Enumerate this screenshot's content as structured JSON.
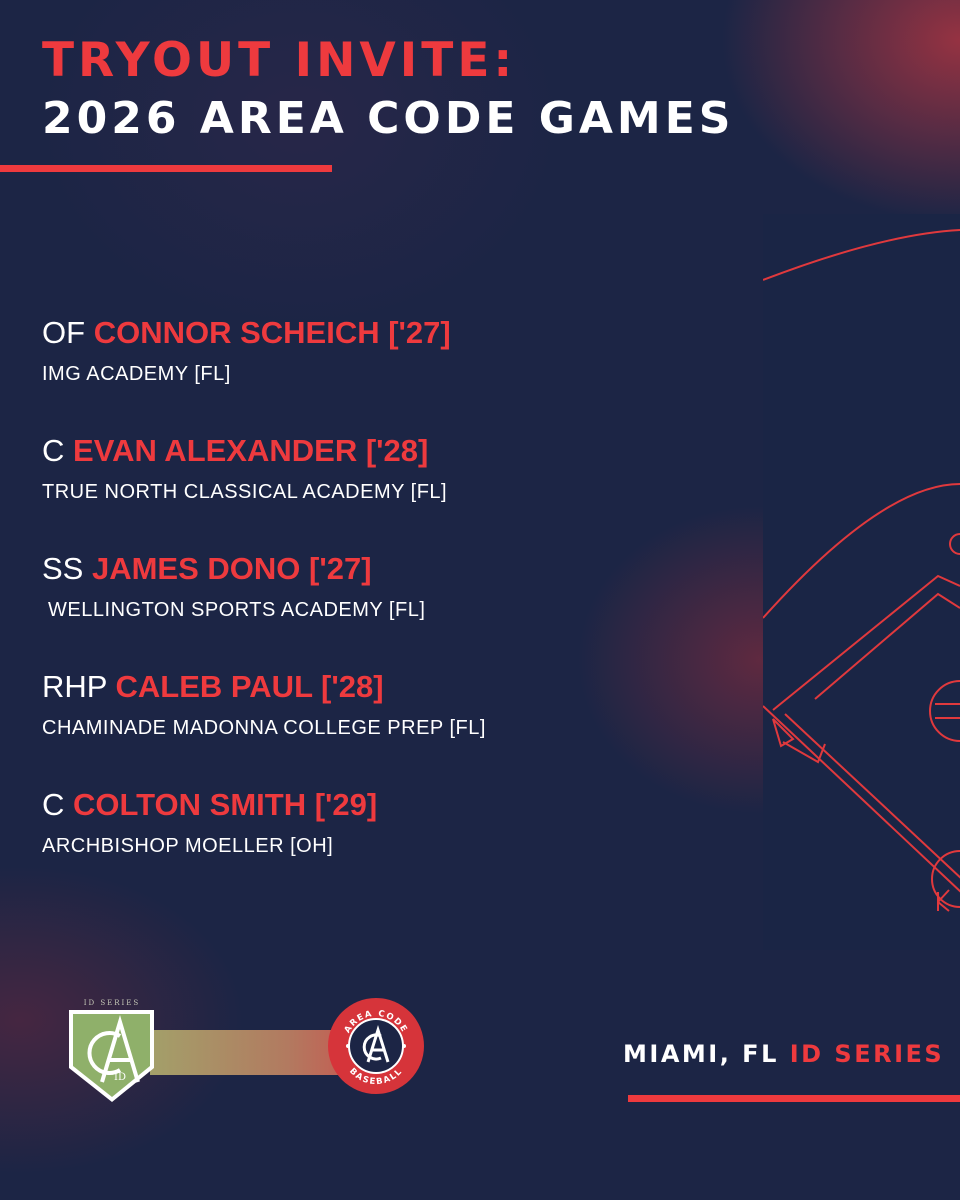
{
  "header": {
    "line1": "TRYOUT INVITE:",
    "line2": "2026 AREA CODE GAMES"
  },
  "players": [
    {
      "position": "OF",
      "name": "CONNOR SCHEICH ['27]",
      "school": "IMG ACADEMY [FL]"
    },
    {
      "position": "C",
      "name": "EVAN ALEXANDER ['28]",
      "school": "TRUE NORTH CLASSICAL ACADEMY [FL]"
    },
    {
      "position": "SS",
      "name": "JAMES DONO ['27]",
      "school": " WELLINGTON SPORTS ACADEMY [FL]"
    },
    {
      "position": "RHP",
      "name": "CALEB PAUL ['28]",
      "school": "CHAMINADE MADONNA COLLEGE PREP [FL]"
    },
    {
      "position": "C",
      "name": "COLTON SMITH ['29]",
      "school": "ARCHBISHOP MOELLER [OH]"
    }
  ],
  "footer": {
    "location": "MIAMI, FL",
    "series": "ID SERIES"
  },
  "logos": {
    "id_series_logo_text": "ID SERIES",
    "id_series_badge_text": "ID",
    "area_code_ring_top": "AREA CODE",
    "area_code_ring_bottom": "BASEBALL"
  },
  "colors": {
    "background": "#1c2545",
    "accent_red": "#ee3a3e",
    "text": "#ffffff",
    "id_logo_green": "#8fb06a"
  },
  "icons": [
    "baseball-field-diagram",
    "id-series-logo",
    "area-code-baseball-logo"
  ]
}
